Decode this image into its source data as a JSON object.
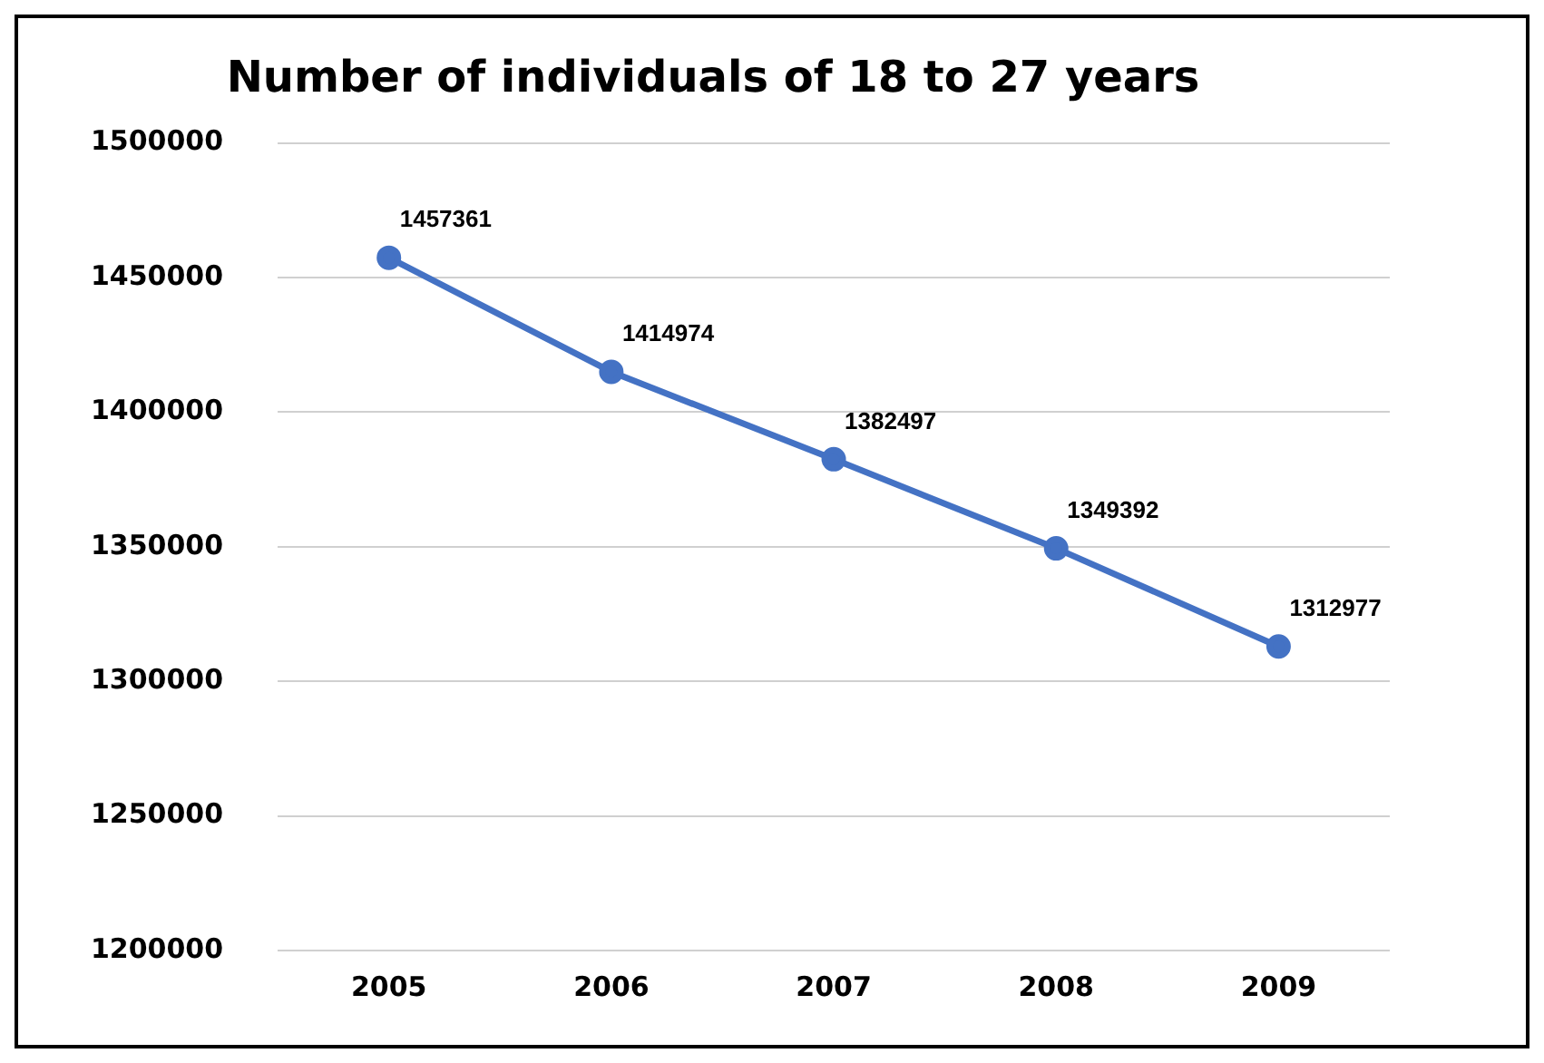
{
  "chart_data": {
    "type": "line",
    "title": "Number of individuals of 18 to 27 years",
    "categories": [
      "2005",
      "2006",
      "2007",
      "2008",
      "2009"
    ],
    "series": [
      {
        "color": "#4472c4",
        "values": [
          1457361,
          1414974,
          1382497,
          1349392,
          1312977
        ]
      }
    ],
    "ylim": [
      1200000,
      1500000
    ],
    "yticks": [
      1200000,
      1250000,
      1300000,
      1350000,
      1400000,
      1450000,
      1500000
    ],
    "grid": "y",
    "legend": false,
    "marker": "circle",
    "line_style": "solid",
    "data_labels": true
  }
}
